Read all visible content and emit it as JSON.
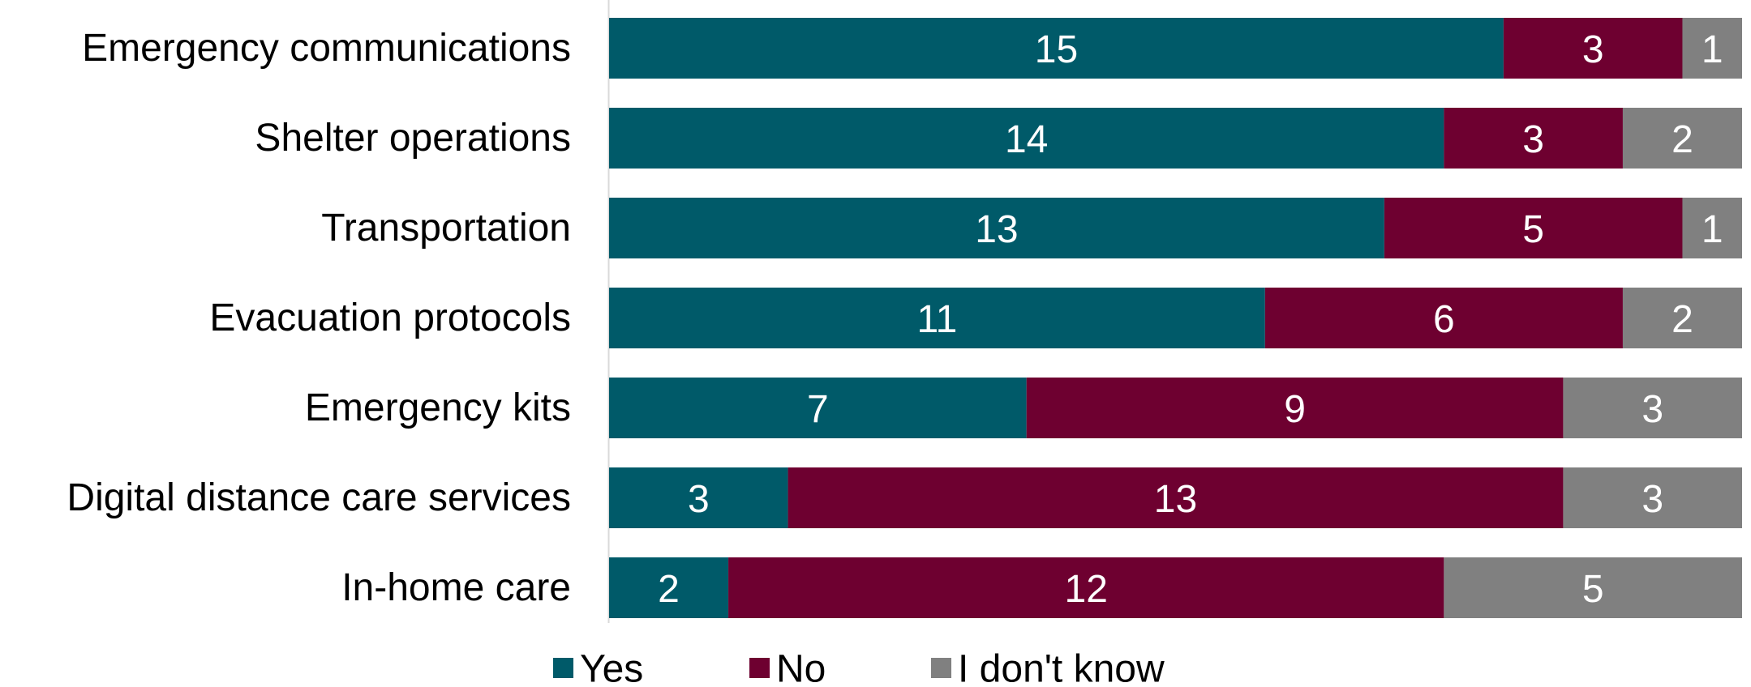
{
  "chart_data": {
    "type": "bar",
    "orientation": "horizontal",
    "stacked": "percent",
    "title": "",
    "xlabel": "",
    "ylabel": "",
    "categories": [
      "Emergency communications",
      "Shelter operations",
      "Transportation",
      "Evacuation protocols",
      "Emergency kits",
      "Digital distance care services",
      "In-home care"
    ],
    "series": [
      {
        "name": "Yes",
        "color": "#005A69",
        "values": [
          15,
          14,
          13,
          11,
          7,
          3,
          2
        ]
      },
      {
        "name": "No",
        "color": "#6E0030",
        "values": [
          3,
          3,
          5,
          6,
          9,
          13,
          12
        ]
      },
      {
        "name": "I don't know",
        "color": "#808080",
        "values": [
          1,
          2,
          1,
          2,
          3,
          3,
          5
        ]
      }
    ],
    "data_labels": true,
    "grid": false,
    "legend": "bottom"
  }
}
